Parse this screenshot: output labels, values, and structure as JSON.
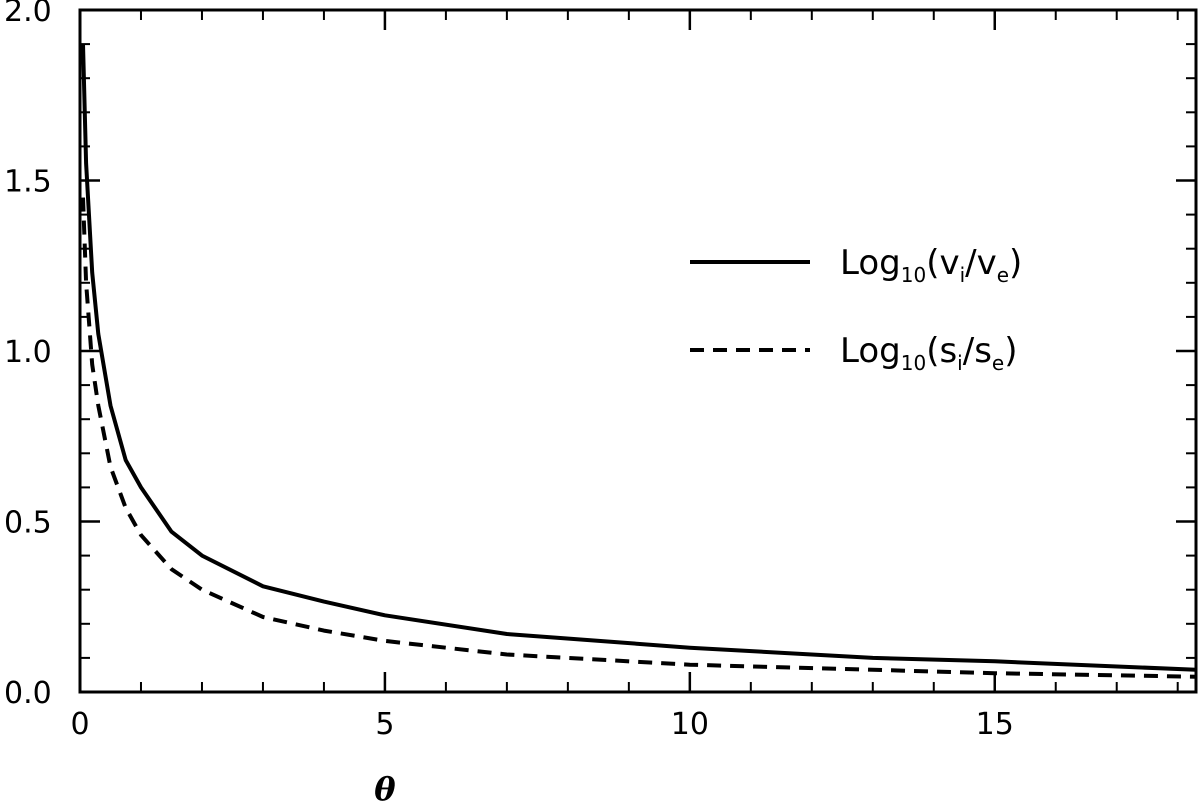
{
  "chart_data": {
    "type": "line",
    "xlabel": "θ",
    "ylabel": "",
    "xlim": [
      0,
      18.3
    ],
    "ylim": [
      0,
      2.0
    ],
    "xticks": [
      0,
      5,
      10,
      15
    ],
    "xtick_labels": [
      "0",
      "5",
      "10",
      "15"
    ],
    "yticks": [
      0.0,
      0.5,
      1.0,
      1.5,
      2.0
    ],
    "ytick_labels": [
      "0.0",
      "0.5",
      "1.0",
      "1.5",
      "2.0"
    ],
    "grid": false,
    "legend_position": "center-right",
    "series": [
      {
        "name": "Log10(vi/ve)",
        "legend": {
          "base": "Log",
          "sub": "10",
          "open": "(",
          "num": "v",
          "num_sub": "i",
          "slash": "/",
          "den": "v",
          "den_sub": "e",
          "close": ")"
        },
        "style": "solid",
        "color": "#000000",
        "x": [
          0.05,
          0.1,
          0.2,
          0.3,
          0.5,
          0.75,
          1.0,
          1.5,
          2.0,
          3.0,
          4.0,
          5.0,
          7.0,
          10.0,
          13.0,
          15.0,
          18.3
        ],
        "y": [
          1.9,
          1.55,
          1.23,
          1.05,
          0.84,
          0.68,
          0.6,
          0.47,
          0.4,
          0.31,
          0.265,
          0.225,
          0.17,
          0.13,
          0.1,
          0.09,
          0.065
        ]
      },
      {
        "name": "Log10(si/se)",
        "legend": {
          "base": "Log",
          "sub": "10",
          "open": "(",
          "num": "s",
          "num_sub": "i",
          "slash": "/",
          "den": "s",
          "den_sub": "e",
          "close": ")"
        },
        "style": "dashed",
        "color": "#000000",
        "x": [
          0.05,
          0.1,
          0.2,
          0.3,
          0.5,
          0.75,
          1.0,
          1.5,
          2.0,
          3.0,
          4.0,
          5.0,
          7.0,
          10.0,
          13.0,
          15.0,
          18.3
        ],
        "y": [
          1.45,
          1.2,
          0.96,
          0.84,
          0.66,
          0.54,
          0.46,
          0.36,
          0.3,
          0.22,
          0.18,
          0.15,
          0.11,
          0.08,
          0.065,
          0.055,
          0.045
        ]
      }
    ]
  }
}
